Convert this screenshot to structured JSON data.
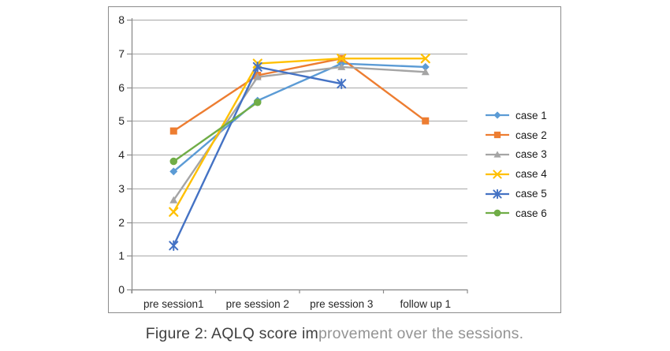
{
  "figure": {
    "caption_dark": "Figure 2: AQLQ score im",
    "caption_light": "provement over the sessions."
  },
  "chart_data": {
    "type": "line",
    "title": "",
    "xlabel": "",
    "ylabel": "",
    "categories": [
      "pre session1",
      "pre session 2",
      "pre session 3",
      "follow up 1"
    ],
    "series": [
      {
        "name": "case 1",
        "color": "#5B9BD5",
        "marker": "diamond",
        "values": [
          3.5,
          5.6,
          6.7,
          6.6
        ]
      },
      {
        "name": "case 2",
        "color": "#ED7D31",
        "marker": "square",
        "values": [
          4.7,
          6.35,
          6.85,
          5.0
        ]
      },
      {
        "name": "case 3",
        "color": "#A5A5A5",
        "marker": "triangle",
        "values": [
          2.65,
          6.3,
          6.6,
          6.45
        ]
      },
      {
        "name": "case 4",
        "color": "#FFC000",
        "marker": "x",
        "values": [
          2.3,
          6.7,
          6.85,
          6.85
        ]
      },
      {
        "name": "case 5",
        "color": "#4472C4",
        "marker": "asterisk",
        "values": [
          1.3,
          6.6,
          6.1,
          null
        ]
      },
      {
        "name": "case 6",
        "color": "#70AD47",
        "marker": "circle",
        "values": [
          3.8,
          5.55,
          null,
          null
        ]
      }
    ],
    "ylim": [
      0,
      8
    ],
    "yticks": [
      0,
      1,
      2,
      3,
      4,
      5,
      6,
      7,
      8
    ],
    "grid": true,
    "legend_position": "right"
  },
  "colors": {
    "grid": "#b3b3b3",
    "axis": "#8c8c8c",
    "box_border": "#8c8c8c",
    "tick_text": "#262626",
    "legend_text": "#1a1a1a",
    "caption_dark": "#3f3f3f",
    "caption_light": "#949494",
    "background": "#ffffff"
  }
}
